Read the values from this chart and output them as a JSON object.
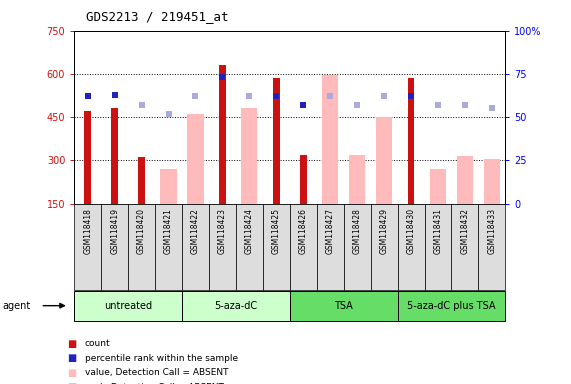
{
  "title": "GDS2213 / 219451_at",
  "samples": [
    "GSM118418",
    "GSM118419",
    "GSM118420",
    "GSM118421",
    "GSM118422",
    "GSM118423",
    "GSM118424",
    "GSM118425",
    "GSM118426",
    "GSM118427",
    "GSM118428",
    "GSM118429",
    "GSM118430",
    "GSM118431",
    "GSM118432",
    "GSM118433"
  ],
  "red_bars": [
    470,
    480,
    310,
    null,
    null,
    630,
    null,
    585,
    320,
    null,
    null,
    null,
    585,
    null,
    null,
    null
  ],
  "pink_bars": [
    null,
    null,
    null,
    270,
    460,
    null,
    480,
    null,
    null,
    595,
    320,
    450,
    null,
    270,
    315,
    305
  ],
  "blue_squares_pct": [
    62,
    63,
    null,
    null,
    null,
    73,
    null,
    62,
    57,
    null,
    null,
    null,
    62,
    null,
    null,
    null
  ],
  "lavender_squares_pct": [
    null,
    null,
    57,
    52,
    62,
    null,
    62,
    null,
    null,
    62,
    57,
    62,
    null,
    57,
    57,
    55
  ],
  "groups": [
    {
      "label": "untreated",
      "start": 0,
      "end": 3,
      "color": "#CCFFCC"
    },
    {
      "label": "5-aza-dC",
      "start": 4,
      "end": 7,
      "color": "#CCFFCC"
    },
    {
      "label": "TSA",
      "start": 8,
      "end": 11,
      "color": "#66DD66"
    },
    {
      "label": "5-aza-dC plus TSA",
      "start": 12,
      "end": 15,
      "color": "#66DD66"
    }
  ],
  "ymin": 150,
  "ymax": 750,
  "yticks_left": [
    150,
    300,
    450,
    600,
    750
  ],
  "yticks_right": [
    0,
    25,
    50,
    75,
    100
  ],
  "grid_vals": [
    300,
    450,
    600
  ],
  "red_color": "#CC1111",
  "pink_color": "#FFBBBB",
  "blue_color": "#2222BB",
  "lavender_color": "#AAAADD",
  "xtick_bg": "#DDDDDD",
  "agent_label": "agent"
}
